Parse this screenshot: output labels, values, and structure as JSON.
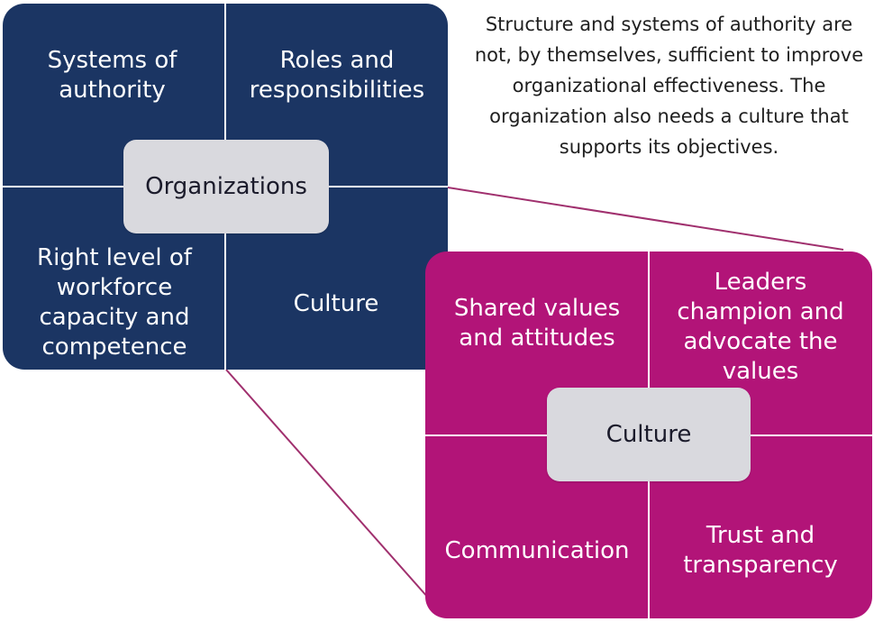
{
  "colors": {
    "organizations_fill": "#1b3563",
    "culture_fill": "#b21478",
    "center_fill": "#d9d9de",
    "connector_stroke": "#a0306e"
  },
  "caption": "Structure and systems of authority are not, by themselves, sufficient to improve organizational effectiveness. The organization also needs a culture that supports its objectives.",
  "organizations": {
    "center_label": "Organizations",
    "quadrants": {
      "top_left": "Systems of authority",
      "top_right": "Roles and responsibilities",
      "bottom_left": "Right level of workforce capacity and competence",
      "bottom_right": "Culture"
    }
  },
  "culture": {
    "center_label": "Culture",
    "quadrants": {
      "top_left": "Shared values and attitudes",
      "top_right": "Leaders champion and advocate the values",
      "bottom_left": "Communication",
      "bottom_right": "Trust and transparency"
    }
  }
}
